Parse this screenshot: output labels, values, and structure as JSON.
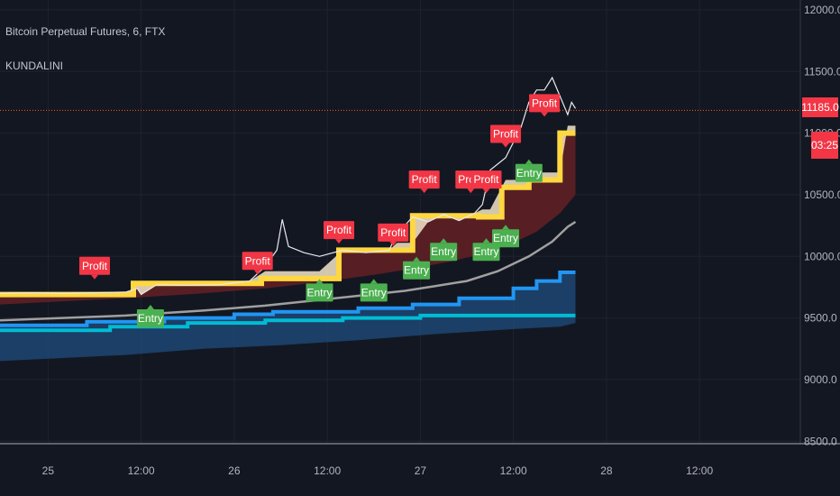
{
  "header": {
    "symbol_title": "Bitcoin Perpetual Futures, 6, FTX",
    "indicator_name": "KUNDALINI"
  },
  "price_tag": {
    "value": "11185.0",
    "countdown": "03:25"
  },
  "colors": {
    "background": "#131722",
    "grid": "#1f2330",
    "profit": "#f23645",
    "entry": "#4caf50",
    "yellow_band": "#ffd740",
    "maroon_cloud": "#5b2025",
    "price_line": "#ff5722",
    "blue": "#2196f3",
    "cyan": "#00bcd4",
    "gray_line": "#a0a0a0"
  },
  "chart_data": {
    "type": "line",
    "instrument": "Bitcoin Perpetual Futures",
    "timeframe": "6",
    "exchange": "FTX",
    "y_axis": {
      "ticks": [
        "12000.0",
        "11500.0",
        "11000.0",
        "10500.0",
        "10000.0",
        "9500.0",
        "9000.0",
        "8500.0"
      ],
      "tick_values": [
        12000,
        11500,
        11000,
        10500,
        10000,
        9500,
        9000,
        8500
      ],
      "range": [
        8480,
        12080
      ]
    },
    "x_axis": {
      "labels": [
        "25",
        "12:00",
        "26",
        "12:00",
        "27",
        "12:00",
        "28",
        "12:00"
      ],
      "label_hours": [
        0,
        12,
        24,
        36,
        48,
        60,
        72,
        84
      ],
      "range": [
        -6.2,
        97
      ]
    },
    "series": [
      {
        "role": "price",
        "x": [
          -6.2,
          -2,
          2,
          6,
          10,
          11.5,
          12,
          14,
          18,
          22,
          26,
          28,
          29.5,
          30.2,
          31,
          33,
          35,
          38,
          41,
          44,
          45,
          46,
          47,
          49,
          51,
          53,
          55,
          56,
          57,
          59,
          61,
          62,
          63,
          64,
          65,
          66,
          67,
          67.5,
          68
        ],
        "y": [
          9700,
          9705,
          9700,
          9705,
          9710,
          9740,
          9690,
          9770,
          9765,
          9770,
          9800,
          9920,
          10050,
          10300,
          10080,
          10030,
          10000,
          10050,
          10030,
          10050,
          10200,
          10250,
          10320,
          10280,
          10340,
          10290,
          10350,
          10420,
          10700,
          10800,
          11050,
          11250,
          11350,
          11350,
          11450,
          11300,
          11150,
          11250,
          11200
        ]
      },
      {
        "role": "yellow_band_upper",
        "x": [
          -6.2,
          11,
          11,
          27.5,
          27.5,
          37.5,
          37.5,
          47,
          47,
          55.5,
          55.5,
          58.5,
          58.5,
          62,
          62,
          66,
          66,
          68
        ],
        "y": [
          9690,
          9690,
          9780,
          9780,
          9820,
          9820,
          10050,
          10050,
          10330,
          10330,
          10320,
          10320,
          10560,
          10560,
          10620,
          10620,
          11000,
          11000
        ]
      },
      {
        "role": "maroon_cloud_lower",
        "x": [
          -6.2,
          10,
          20,
          28,
          35,
          42,
          47,
          52,
          56,
          60,
          63,
          66,
          68
        ],
        "y": [
          9610,
          9660,
          9700,
          9740,
          9790,
          9850,
          9900,
          9960,
          10020,
          10110,
          10200,
          10350,
          10500
        ]
      },
      {
        "role": "gray_line",
        "x": [
          -6.2,
          10,
          20,
          28,
          34,
          40,
          46,
          50,
          54,
          58,
          62,
          65,
          67,
          68
        ],
        "y": [
          9480,
          9520,
          9560,
          9600,
          9640,
          9680,
          9720,
          9760,
          9800,
          9880,
          10000,
          10120,
          10240,
          10280
        ]
      },
      {
        "role": "blue_step",
        "x": [
          -6.2,
          5,
          5,
          15,
          15,
          24,
          24,
          29,
          29,
          40,
          40,
          47,
          47,
          53,
          53,
          60,
          60,
          63,
          63,
          66,
          66,
          68
        ],
        "y": [
          9440,
          9440,
          9470,
          9470,
          9500,
          9500,
          9530,
          9530,
          9550,
          9550,
          9580,
          9580,
          9610,
          9610,
          9660,
          9660,
          9740,
          9740,
          9800,
          9800,
          9870,
          9870
        ]
      },
      {
        "role": "cyan_step",
        "x": [
          -6.2,
          8,
          8,
          18,
          18,
          28,
          28,
          38,
          38,
          48,
          48,
          68
        ],
        "y": [
          9400,
          9400,
          9430,
          9430,
          9460,
          9460,
          9480,
          9480,
          9500,
          9500,
          9520,
          9520
        ]
      },
      {
        "role": "blue_cloud_lower",
        "x": [
          -6.2,
          10,
          20,
          30,
          40,
          50,
          60,
          66,
          68
        ],
        "y": [
          9150,
          9200,
          9250,
          9280,
          9320,
          9370,
          9410,
          9430,
          9460
        ]
      }
    ],
    "signals": [
      {
        "label": "Profit",
        "x": 6,
        "y": 9850
      },
      {
        "label": "Entry",
        "x": 13.2,
        "y": 9570
      },
      {
        "label": "Profit",
        "x": 27,
        "y": 9890
      },
      {
        "label": "Entry",
        "x": 35,
        "y": 9780
      },
      {
        "label": "Profit",
        "x": 37.5,
        "y": 10140
      },
      {
        "label": "Entry",
        "x": 42,
        "y": 9780
      },
      {
        "label": "Profit",
        "x": 44.5,
        "y": 10120
      },
      {
        "label": "Entry",
        "x": 47.5,
        "y": 9960
      },
      {
        "label": "Profit",
        "x": 48.5,
        "y": 10550
      },
      {
        "label": "Entry",
        "x": 51,
        "y": 10110
      },
      {
        "label": "Profit",
        "x": 54.5,
        "y": 10550
      },
      {
        "label": "Profit",
        "x": 56.5,
        "y": 10550
      },
      {
        "label": "Entry",
        "x": 56.5,
        "y": 10110
      },
      {
        "label": "Entry",
        "x": 59,
        "y": 10220
      },
      {
        "label": "Profit",
        "x": 59,
        "y": 10920
      },
      {
        "label": "Entry",
        "x": 62,
        "y": 10750
      },
      {
        "label": "Profit",
        "x": 64,
        "y": 11170
      }
    ],
    "current_price": 11185
  }
}
